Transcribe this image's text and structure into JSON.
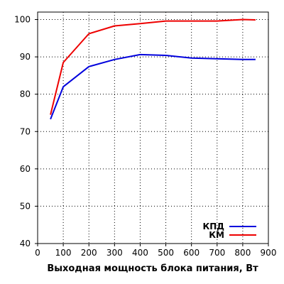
{
  "chart_data": {
    "type": "line",
    "title": "",
    "xlabel": "Выходная мощность блока питания, Вт",
    "ylabel": "",
    "xlim": [
      0,
      900
    ],
    "ylim": [
      40,
      102
    ],
    "xticks": [
      "0",
      "100",
      "200",
      "300",
      "400",
      "500",
      "600",
      "700",
      "800",
      "900"
    ],
    "yticks": [
      "40",
      "50",
      "60",
      "70",
      "80",
      "90",
      "100"
    ],
    "grid": true,
    "legend_position": "bottom-right",
    "series": [
      {
        "name": "КПД",
        "color": "#0000dd",
        "x": [
          50,
          100,
          200,
          300,
          400,
          500,
          600,
          700,
          800,
          850
        ],
        "y": [
          73.3,
          82.0,
          87.4,
          89.3,
          90.6,
          90.4,
          89.7,
          89.5,
          89.3,
          89.3
        ]
      },
      {
        "name": "КМ",
        "color": "#ee0000",
        "x": [
          50,
          100,
          200,
          300,
          400,
          500,
          600,
          700,
          800,
          850
        ],
        "y": [
          74.5,
          88.5,
          96.2,
          98.3,
          98.9,
          99.6,
          99.6,
          99.6,
          100.0,
          99.9
        ]
      }
    ]
  }
}
